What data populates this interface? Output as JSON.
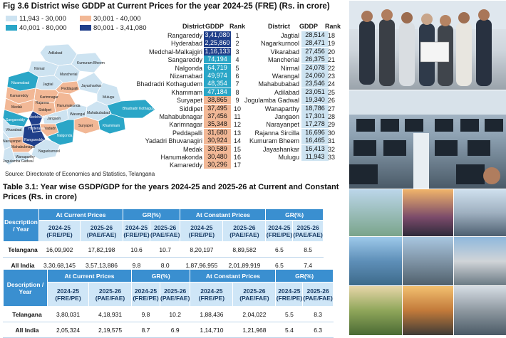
{
  "fig36": {
    "title": "Fig 3.6  District wise GDDP at Current Prices for the year 2024-25 (FRE) (Rs. in crore)",
    "legend": [
      {
        "label": "11,943 - 30,000",
        "color": "#cde3f1"
      },
      {
        "label": "30,001 - 40,000",
        "color": "#f2b896"
      },
      {
        "label": "40,001 - 80,000",
        "color": "#2aa6c7"
      },
      {
        "label": "80,001 - 3,41,080",
        "color": "#1f3f8a"
      }
    ],
    "col_headers": {
      "district": "District",
      "gddp": "GDDP",
      "rank": "Rank"
    },
    "left_districts": [
      {
        "name": "Rangareddy",
        "gddp": "3,41,080",
        "rank": "1",
        "color": "#1f3f8a"
      },
      {
        "name": "Hyderabad",
        "gddp": "2,25,860",
        "rank": "2",
        "color": "#1f3f8a"
      },
      {
        "name": "Medchal-Malkajgiri",
        "gddp": "1,16,133",
        "rank": "3",
        "color": "#1f3f8a"
      },
      {
        "name": "Sangareddy",
        "gddp": "74,194",
        "rank": "4",
        "color": "#2aa6c7"
      },
      {
        "name": "Nalgonda",
        "gddp": "64,719",
        "rank": "5",
        "color": "#2aa6c7"
      },
      {
        "name": "Nizamabad",
        "gddp": "49,974",
        "rank": "6",
        "color": "#2aa6c7"
      },
      {
        "name": "Bhadradri Kothagudem",
        "gddp": "48,354",
        "rank": "7",
        "color": "#2aa6c7"
      },
      {
        "name": "Khammam",
        "gddp": "47,184",
        "rank": "8",
        "color": "#2aa6c7"
      },
      {
        "name": "Suryapet",
        "gddp": "38,865",
        "rank": "9",
        "color": "#f2b896"
      },
      {
        "name": "Siddipet",
        "gddp": "37,495",
        "rank": "10",
        "color": "#f2b896"
      },
      {
        "name": "Mahabubnagar",
        "gddp": "37,456",
        "rank": "11",
        "color": "#f2b896"
      },
      {
        "name": "Karimnagar",
        "gddp": "35,348",
        "rank": "12",
        "color": "#f2b896"
      },
      {
        "name": "Peddapalli",
        "gddp": "31,680",
        "rank": "13",
        "color": "#f2b896"
      },
      {
        "name": "Yadadri Bhuvanagiri",
        "gddp": "30,924",
        "rank": "14",
        "color": "#f2b896"
      },
      {
        "name": "Medak",
        "gddp": "30,589",
        "rank": "15",
        "color": "#f2b896"
      },
      {
        "name": "Hanumakonda",
        "gddp": "30,480",
        "rank": "16",
        "color": "#f2b896"
      },
      {
        "name": "Kamareddy",
        "gddp": "30,296",
        "rank": "17",
        "color": "#f2b896"
      }
    ],
    "right_districts": [
      {
        "name": "Jagtial",
        "gddp": "28,514",
        "rank": "18",
        "color": "#cde3f1"
      },
      {
        "name": "Nagarkurnool",
        "gddp": "28,471",
        "rank": "19",
        "color": "#cde3f1"
      },
      {
        "name": "Vikarabad",
        "gddp": "27,456",
        "rank": "20",
        "color": "#cde3f1"
      },
      {
        "name": "Mancherial",
        "gddp": "26,375",
        "rank": "21",
        "color": "#cde3f1"
      },
      {
        "name": "Nirmal",
        "gddp": "24,078",
        "rank": "22",
        "color": "#cde3f1"
      },
      {
        "name": "Warangal",
        "gddp": "24,060",
        "rank": "23",
        "color": "#cde3f1"
      },
      {
        "name": "Mahabubabad",
        "gddp": "23,546",
        "rank": "24",
        "color": "#cde3f1"
      },
      {
        "name": "Adilabad",
        "gddp": "23,051",
        "rank": "25",
        "color": "#cde3f1"
      },
      {
        "name": "Jogulamba Gadwal",
        "gddp": "19,340",
        "rank": "26",
        "color": "#cde3f1"
      },
      {
        "name": "Wanaparthy",
        "gddp": "18,786",
        "rank": "27",
        "color": "#cde3f1"
      },
      {
        "name": "Jangaon",
        "gddp": "17,301",
        "rank": "28",
        "color": "#cde3f1"
      },
      {
        "name": "Narayanpet",
        "gddp": "17,278",
        "rank": "29",
        "color": "#cde3f1"
      },
      {
        "name": "Rajanna Sircilla",
        "gddp": "16,696",
        "rank": "30",
        "color": "#cde3f1"
      },
      {
        "name": "Kumuram Bheem",
        "gddp": "16,465",
        "rank": "31",
        "color": "#cde3f1"
      },
      {
        "name": "Jayashankar",
        "gddp": "16,413",
        "rank": "32",
        "color": "#cde3f1"
      },
      {
        "name": "Mulugu",
        "gddp": "11,943",
        "rank": "33",
        "color": "#cde3f1"
      }
    ],
    "map_labels": [
      "Adilabad",
      "Nirmal",
      "Kumuram Bheem",
      "Mancherial",
      "Nizamabad",
      "Jagtial",
      "Peddapalli",
      "Kamareddy",
      "Karimnagar",
      "Jayashankar",
      "Rajanna",
      "Medak",
      "Siddipet",
      "Hanumakonda",
      "Mulugu",
      "Bhadradri Kothagudem",
      "Sangareddy",
      "Medchal Malkajgiri",
      "Jangaon",
      "Mahabubabad",
      "Vikarabad",
      "Hyderabad",
      "Warangal",
      "Yadadri",
      "Rangareddy",
      "Khammam",
      "Narayanpet",
      "Mahabubnagar",
      "Nalgonda",
      "Suryapet",
      "Wanaparthy",
      "Nagarkurnool",
      "Jogulamba Gadwal"
    ],
    "source": "Source: Directorate of Economics and Statistics, Telangana"
  },
  "table31": {
    "title": "Table 3.1: Year wise GSDP/GDP for the years 2024-25 and 2025-26 at Current and Constant Prices (Rs. in crore)"
  },
  "tables": [
    {
      "desc": "Description / Year",
      "current": "At Current Prices",
      "gr": "GR(%)",
      "constant": "At Constant Prices",
      "gr2": "GR(%)",
      "sub": [
        "2024-25 (FRE/PE)",
        "2025-26 (PAE/FAE)",
        "2024-25 (FRE/PE)",
        "2025-26 (PAE/FAE)",
        "2024-25 (FRE/PE)",
        "2025-26 (PAE/FAE)",
        "2024-25 (FRE/PE)",
        "2025-26 (PAE/FAE)"
      ],
      "rows": [
        {
          "label": "Telangana",
          "vals": [
            "16,09,902",
            "17,82,198",
            "10.6",
            "10.7",
            "8,20,197",
            "8,89,582",
            "6.5",
            "8.5"
          ]
        },
        {
          "label": "All India",
          "vals": [
            "3,30,68,145",
            "3,57,13,886",
            "9.8",
            "8.0",
            "1,87,96,955",
            "2,01,89,919",
            "6.5",
            "7.4"
          ]
        }
      ]
    },
    {
      "desc": "Description / Year",
      "current": "At Current Prices",
      "gr": "GR(%)",
      "constant": "At Constant Prices",
      "gr2": "GR(%)",
      "sub": [
        "2024-25 (FRE/PE)",
        "2025-26 (PAE/FAE)",
        "2024-25 (FRE/PE)",
        "2025-26 (PAE/FAE)",
        "2024-25 (FRE/PE)",
        "2025-26 (PAE/FAE)",
        "2024-25 (FRE/PE)",
        "2025-26 (PAE/FAE)"
      ],
      "rows": [
        {
          "label": "Telangana",
          "vals": [
            "3,80,031",
            "4,18,931",
            "9.8",
            "10.2",
            "1,88,436",
            "2,04,022",
            "5.5",
            "8.3"
          ]
        },
        {
          "label": "All India",
          "vals": [
            "2,05,324",
            "2,19,575",
            "8.7",
            "6.9",
            "1,14,710",
            "1,21,968",
            "5.4",
            "6.3"
          ]
        }
      ]
    }
  ]
}
